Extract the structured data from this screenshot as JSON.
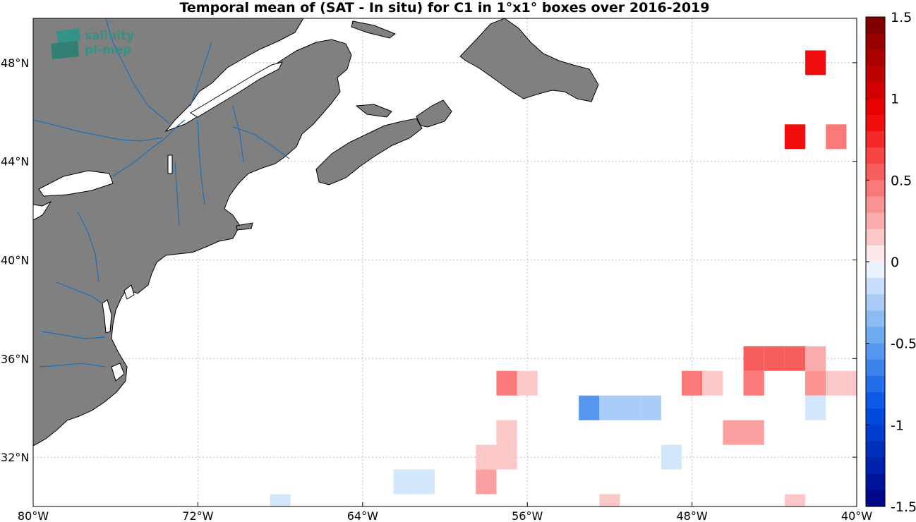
{
  "title": "Temporal mean of (SAT - In situ) for C1 in 1°x1° boxes over 2016-2019",
  "logo": {
    "line1": "salinity",
    "line2": "pi-mep",
    "icon": "salinity-pimep-logo-icon"
  },
  "axes": {
    "lon_labels": [
      "80°W",
      "72°W",
      "64°W",
      "56°W",
      "48°W",
      "40°W"
    ],
    "lat_labels": [
      "48°N",
      "44°N",
      "40°N",
      "36°N",
      "32°N"
    ]
  },
  "colorbar": {
    "labels": [
      "1.5",
      "1",
      "0.5",
      "0",
      "-0.5",
      "-1",
      "-1.5"
    ],
    "range": [
      -1.5,
      1.5
    ],
    "levels": 30
  },
  "colors": {
    "land": "#808080",
    "rivers": "#1f6fb5",
    "grid": "#bdbdbd"
  },
  "chart_data": {
    "type": "heatmap",
    "title": "Temporal mean of (SAT - In situ) for C1 in 1°x1° boxes over 2016-2019",
    "lon_range": [
      -80,
      -40
    ],
    "lat_range": [
      30,
      49.8
    ],
    "color_range": [
      -1.5,
      1.5
    ],
    "cells": [
      {
        "lon": -42,
        "lat": 48,
        "value": 0.85
      },
      {
        "lon": -43,
        "lat": 45,
        "value": 0.85
      },
      {
        "lon": -41,
        "lat": 45,
        "value": 0.45
      },
      {
        "lon": -45,
        "lat": 36,
        "value": 0.55
      },
      {
        "lon": -44,
        "lat": 36,
        "value": 0.55
      },
      {
        "lon": -43,
        "lat": 36,
        "value": 0.55
      },
      {
        "lon": -42,
        "lat": 36,
        "value": 0.25
      },
      {
        "lon": -57,
        "lat": 35,
        "value": 0.45
      },
      {
        "lon": -56,
        "lat": 35,
        "value": 0.15
      },
      {
        "lon": -48,
        "lat": 35,
        "value": 0.45
      },
      {
        "lon": -47,
        "lat": 35,
        "value": 0.15
      },
      {
        "lon": -45,
        "lat": 35,
        "value": 0.45
      },
      {
        "lon": -42,
        "lat": 35,
        "value": 0.35
      },
      {
        "lon": -41,
        "lat": 35,
        "value": 0.15
      },
      {
        "lon": -40,
        "lat": 35,
        "value": 0.15
      },
      {
        "lon": -53,
        "lat": 34,
        "value": -0.55
      },
      {
        "lon": -52,
        "lat": 34,
        "value": -0.25
      },
      {
        "lon": -51,
        "lat": 34,
        "value": -0.25
      },
      {
        "lon": -50,
        "lat": 34,
        "value": -0.25
      },
      {
        "lon": -42,
        "lat": 34,
        "value": -0.1
      },
      {
        "lon": -57,
        "lat": 33,
        "value": 0.15
      },
      {
        "lon": -46,
        "lat": 33,
        "value": 0.3
      },
      {
        "lon": -45,
        "lat": 33,
        "value": 0.3
      },
      {
        "lon": -58,
        "lat": 32,
        "value": 0.15
      },
      {
        "lon": -57,
        "lat": 32,
        "value": 0.15
      },
      {
        "lon": -57,
        "lat": 33,
        "value": 0.15
      },
      {
        "lon": -49,
        "lat": 32,
        "value": -0.1
      },
      {
        "lon": -62,
        "lat": 31,
        "value": -0.1
      },
      {
        "lon": -61,
        "lat": 31,
        "value": -0.1
      },
      {
        "lon": -58,
        "lat": 31,
        "value": 0.3
      },
      {
        "lon": -68,
        "lat": 30,
        "value": -0.1
      },
      {
        "lon": -52,
        "lat": 30,
        "value": 0.15
      },
      {
        "lon": -43,
        "lat": 30,
        "value": 0.15
      }
    ]
  }
}
